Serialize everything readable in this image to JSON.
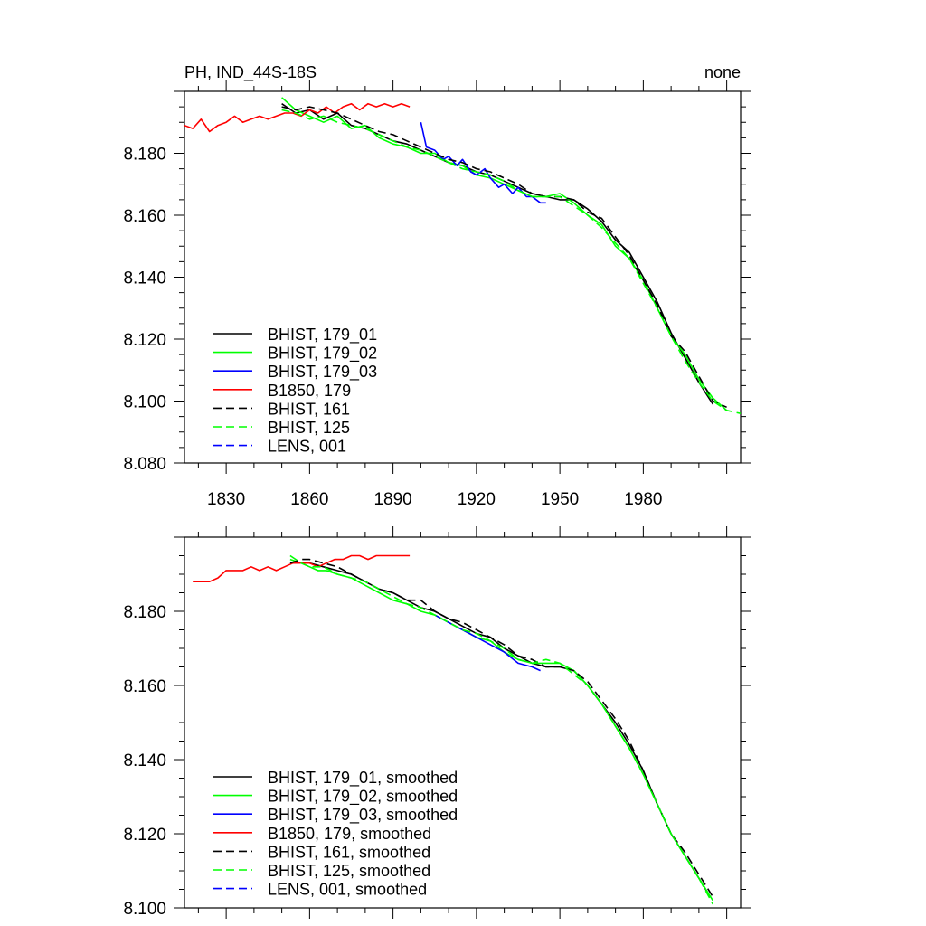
{
  "header": {
    "title": "PH, IND_44S-18S",
    "right_label": "none"
  },
  "chart_data": [
    {
      "type": "line",
      "title": "PH, IND_44S-18S",
      "right_title": "none",
      "xlim": [
        1815,
        2015
      ],
      "ylim": [
        8.08,
        8.2
      ],
      "xticks": [
        1830,
        1860,
        1890,
        1920,
        1950,
        1980
      ],
      "yticks": [
        8.08,
        8.1,
        8.12,
        8.14,
        8.16,
        8.18
      ],
      "ytick_labels": [
        "8.080",
        "8.100",
        "8.120",
        "8.140",
        "8.160",
        "8.180"
      ],
      "legend_position": "bottom-left",
      "series": [
        {
          "name": "BHIST, 179_01",
          "color": "#000000",
          "dash": "solid",
          "x": [
            1850,
            1855,
            1860,
            1865,
            1870,
            1875,
            1880,
            1885,
            1890,
            1895,
            1900,
            1905,
            1910,
            1915,
            1920,
            1925,
            1930,
            1935,
            1940,
            1945,
            1950,
            1955,
            1960,
            1965,
            1970,
            1975,
            1980,
            1985,
            1990,
            1995,
            2000,
            2005
          ],
          "y": [
            8.196,
            8.193,
            8.194,
            8.191,
            8.193,
            8.189,
            8.188,
            8.186,
            8.184,
            8.183,
            8.181,
            8.179,
            8.177,
            8.176,
            8.174,
            8.173,
            8.171,
            8.169,
            8.167,
            8.166,
            8.165,
            8.165,
            8.162,
            8.158,
            8.152,
            8.148,
            8.14,
            8.132,
            8.122,
            8.114,
            8.106,
            8.099
          ]
        },
        {
          "name": "BHIST, 179_02",
          "color": "#00ff00",
          "dash": "solid",
          "x": [
            1850,
            1855,
            1860,
            1865,
            1870,
            1875,
            1880,
            1885,
            1890,
            1895,
            1900,
            1905,
            1910,
            1915,
            1920,
            1925,
            1930,
            1935,
            1940,
            1945,
            1950,
            1955,
            1960,
            1965,
            1970,
            1975,
            1980,
            1985,
            1990,
            1995,
            2000,
            2005,
            2010
          ],
          "y": [
            8.198,
            8.194,
            8.192,
            8.19,
            8.192,
            8.188,
            8.189,
            8.185,
            8.183,
            8.182,
            8.18,
            8.18,
            8.177,
            8.176,
            8.173,
            8.172,
            8.17,
            8.168,
            8.166,
            8.166,
            8.167,
            8.164,
            8.16,
            8.157,
            8.15,
            8.146,
            8.139,
            8.13,
            8.121,
            8.115,
            8.107,
            8.101,
            8.097
          ]
        },
        {
          "name": "BHIST, 179_03",
          "color": "#0000ff",
          "dash": "solid",
          "x": [
            1900,
            1902,
            1905,
            1908,
            1910,
            1913,
            1915,
            1918,
            1920,
            1923,
            1925,
            1928,
            1930,
            1933,
            1935,
            1938,
            1940,
            1943,
            1945
          ],
          "y": [
            8.19,
            8.182,
            8.181,
            8.178,
            8.179,
            8.176,
            8.178,
            8.174,
            8.173,
            8.175,
            8.172,
            8.169,
            8.17,
            8.167,
            8.169,
            8.166,
            8.166,
            8.164,
            8.164
          ]
        },
        {
          "name": "B1850, 179",
          "color": "#ff0000",
          "dash": "solid",
          "x": [
            1815,
            1818,
            1821,
            1824,
            1827,
            1830,
            1833,
            1836,
            1839,
            1842,
            1845,
            1848,
            1851,
            1854,
            1857,
            1860,
            1863,
            1866,
            1869,
            1872,
            1875,
            1878,
            1881,
            1884,
            1887,
            1890,
            1893,
            1896
          ],
          "y": [
            8.189,
            8.188,
            8.191,
            8.187,
            8.189,
            8.19,
            8.192,
            8.19,
            8.191,
            8.192,
            8.191,
            8.192,
            8.193,
            8.193,
            8.192,
            8.194,
            8.193,
            8.195,
            8.193,
            8.195,
            8.196,
            8.194,
            8.196,
            8.195,
            8.196,
            8.195,
            8.196,
            8.195
          ]
        },
        {
          "name": "BHIST, 161",
          "color": "#000000",
          "dash": "dashed",
          "x": [
            1850,
            1855,
            1860,
            1865,
            1870,
            1875,
            1880,
            1885,
            1890,
            1895,
            1900,
            1905,
            1910,
            1915,
            1920,
            1925,
            1930,
            1935,
            1940,
            1945,
            1950,
            1955,
            1960,
            1965,
            1970,
            1975,
            1980,
            1985,
            1990,
            1995,
            2000,
            2005,
            2010
          ],
          "y": [
            8.195,
            8.194,
            8.195,
            8.194,
            8.193,
            8.191,
            8.189,
            8.187,
            8.186,
            8.184,
            8.182,
            8.18,
            8.178,
            8.177,
            8.175,
            8.174,
            8.172,
            8.17,
            8.167,
            8.166,
            8.166,
            8.165,
            8.161,
            8.159,
            8.153,
            8.147,
            8.139,
            8.131,
            8.121,
            8.116,
            8.108,
            8.1,
            8.098
          ]
        },
        {
          "name": "BHIST, 125",
          "color": "#00ff00",
          "dash": "dashed",
          "x": [
            1850,
            1855,
            1860,
            1865,
            1870,
            1875,
            1880,
            1885,
            1890,
            1895,
            1900,
            1905,
            1910,
            1915,
            1920,
            1925,
            1930,
            1935,
            1940,
            1945,
            1950,
            1955,
            1960,
            1965,
            1970,
            1975,
            1980,
            1985,
            1990,
            1995,
            2000,
            2005,
            2010,
            2015
          ],
          "y": [
            8.194,
            8.193,
            8.191,
            8.192,
            8.19,
            8.189,
            8.188,
            8.186,
            8.184,
            8.182,
            8.181,
            8.179,
            8.177,
            8.175,
            8.174,
            8.173,
            8.171,
            8.168,
            8.166,
            8.166,
            8.166,
            8.163,
            8.16,
            8.156,
            8.151,
            8.146,
            8.138,
            8.13,
            8.121,
            8.113,
            8.106,
            8.1,
            8.097,
            8.096
          ]
        },
        {
          "name": "LENS, 001",
          "color": "#0000ff",
          "dash": "dashed",
          "x": [],
          "y": []
        }
      ]
    },
    {
      "type": "line",
      "xlim": [
        1815,
        2015
      ],
      "ylim": [
        8.1,
        8.2
      ],
      "xticks": [
        1830,
        1860,
        1890,
        1920,
        1950,
        1980
      ],
      "yticks": [
        8.1,
        8.12,
        8.14,
        8.16,
        8.18
      ],
      "ytick_labels": [
        "8.100",
        "8.120",
        "8.140",
        "8.160",
        "8.180"
      ],
      "legend_position": "bottom-left",
      "series": [
        {
          "name": "BHIST, 179_01, smoothed",
          "color": "#000000",
          "dash": "solid",
          "x": [
            1855,
            1860,
            1865,
            1870,
            1875,
            1880,
            1885,
            1890,
            1895,
            1900,
            1905,
            1910,
            1915,
            1920,
            1925,
            1930,
            1935,
            1940,
            1945,
            1950,
            1955,
            1960,
            1965,
            1970,
            1975,
            1980,
            1985,
            1990,
            1995,
            2000,
            2004
          ],
          "y": [
            8.193,
            8.193,
            8.192,
            8.191,
            8.19,
            8.188,
            8.186,
            8.185,
            8.183,
            8.181,
            8.18,
            8.178,
            8.176,
            8.174,
            8.173,
            8.17,
            8.168,
            8.166,
            8.165,
            8.165,
            8.164,
            8.16,
            8.155,
            8.15,
            8.144,
            8.137,
            8.128,
            8.12,
            8.114,
            8.108,
            8.103
          ]
        },
        {
          "name": "BHIST, 179_02, smoothed",
          "color": "#00ff00",
          "dash": "solid",
          "x": [
            1853,
            1857,
            1860,
            1863,
            1866,
            1870,
            1875,
            1880,
            1885,
            1890,
            1895,
            1900,
            1905,
            1910,
            1915,
            1920,
            1925,
            1930,
            1935,
            1940,
            1945,
            1950,
            1955,
            1960,
            1965,
            1970,
            1975,
            1980,
            1985,
            1990,
            1995,
            2000,
            2005
          ],
          "y": [
            8.194,
            8.193,
            8.192,
            8.191,
            8.191,
            8.19,
            8.189,
            8.187,
            8.185,
            8.183,
            8.182,
            8.18,
            8.179,
            8.177,
            8.175,
            8.173,
            8.172,
            8.169,
            8.167,
            8.166,
            8.166,
            8.166,
            8.164,
            8.16,
            8.155,
            8.149,
            8.143,
            8.136,
            8.128,
            8.12,
            8.114,
            8.108,
            8.102
          ]
        },
        {
          "name": "BHIST, 179_03, smoothed",
          "color": "#0000ff",
          "dash": "solid",
          "x": [
            1905,
            1910,
            1915,
            1920,
            1925,
            1930,
            1935,
            1940,
            1943
          ],
          "y": [
            8.179,
            8.177,
            8.175,
            8.173,
            8.171,
            8.169,
            8.166,
            8.165,
            8.164
          ]
        },
        {
          "name": "B1850, 179, smoothed",
          "color": "#ff0000",
          "dash": "solid",
          "x": [
            1818,
            1821,
            1824,
            1827,
            1830,
            1833,
            1836,
            1839,
            1842,
            1845,
            1848,
            1851,
            1854,
            1857,
            1860,
            1863,
            1866,
            1869,
            1872,
            1875,
            1878,
            1881,
            1884,
            1887,
            1890,
            1893,
            1896
          ],
          "y": [
            8.188,
            8.188,
            8.188,
            8.189,
            8.191,
            8.191,
            8.191,
            8.192,
            8.191,
            8.192,
            8.191,
            8.192,
            8.193,
            8.193,
            8.193,
            8.192,
            8.193,
            8.194,
            8.194,
            8.195,
            8.195,
            8.194,
            8.195,
            8.195,
            8.195,
            8.195,
            8.195
          ]
        },
        {
          "name": "BHIST, 161, smoothed",
          "color": "#000000",
          "dash": "dashed",
          "x": [
            1853,
            1857,
            1860,
            1865,
            1870,
            1875,
            1880,
            1885,
            1890,
            1895,
            1900,
            1905,
            1910,
            1915,
            1920,
            1925,
            1930,
            1935,
            1940,
            1945,
            1950,
            1955,
            1960,
            1965,
            1970,
            1975,
            1980,
            1985,
            1990,
            1995,
            2000,
            2005
          ],
          "y": [
            8.193,
            8.194,
            8.194,
            8.193,
            8.192,
            8.19,
            8.188,
            8.186,
            8.185,
            8.183,
            8.183,
            8.18,
            8.178,
            8.177,
            8.175,
            8.173,
            8.171,
            8.168,
            8.167,
            8.165,
            8.165,
            8.164,
            8.161,
            8.156,
            8.151,
            8.145,
            8.137,
            8.128,
            8.12,
            8.115,
            8.109,
            8.103
          ]
        },
        {
          "name": "BHIST, 125, smoothed",
          "color": "#00ff00",
          "dash": "dashed",
          "x": [
            1853,
            1857,
            1860,
            1865,
            1870,
            1875,
            1880,
            1885,
            1890,
            1895,
            1900,
            1905,
            1910,
            1915,
            1920,
            1925,
            1930,
            1935,
            1940,
            1945,
            1950,
            1955,
            1960,
            1965,
            1970,
            1975,
            1980,
            1985,
            1990,
            1995,
            2000,
            2005
          ],
          "y": [
            8.195,
            8.193,
            8.192,
            8.192,
            8.19,
            8.189,
            8.188,
            8.186,
            8.184,
            8.182,
            8.181,
            8.179,
            8.177,
            8.175,
            8.174,
            8.172,
            8.17,
            8.167,
            8.166,
            8.167,
            8.166,
            8.163,
            8.16,
            8.155,
            8.149,
            8.143,
            8.136,
            8.128,
            8.12,
            8.114,
            8.108,
            8.101
          ]
        },
        {
          "name": "LENS, 001, smoothed",
          "color": "#0000ff",
          "dash": "dashed",
          "x": [],
          "y": []
        }
      ]
    }
  ]
}
